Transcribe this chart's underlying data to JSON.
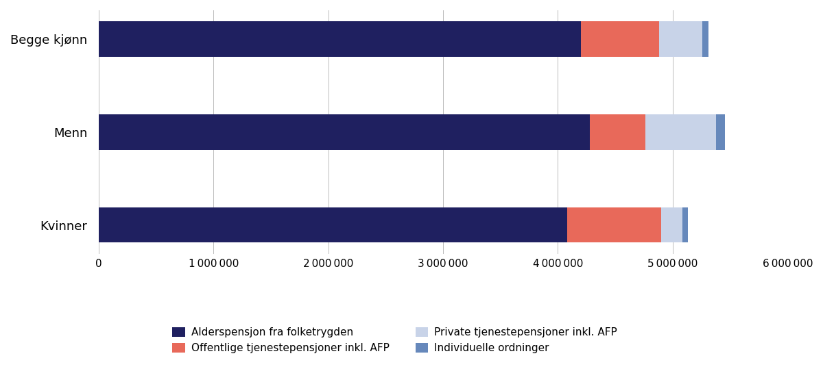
{
  "categories": [
    "Begge kjønn",
    "Menn",
    "Kvinner"
  ],
  "series": {
    "Alderspensjon fra folketrygden": [
      4200000,
      4280000,
      4080000
    ],
    "Offentlige tjenestepensjoner inkl. AFP": [
      680000,
      480000,
      820000
    ],
    "Private tjenestepensjoner inkl. AFP": [
      380000,
      620000,
      185000
    ],
    "Individuelle ordninger": [
      50000,
      75000,
      45000
    ]
  },
  "colors": {
    "Alderspensjon fra folketrygden": "#1f2060",
    "Offentlige tjenestepensjoner inkl. AFP": "#e8695a",
    "Private tjenestepensjoner inkl. AFP": "#c8d3e8",
    "Individuelle ordninger": "#6688bb"
  },
  "xlim": [
    0,
    6000000
  ],
  "xticks": [
    0,
    1000000,
    2000000,
    3000000,
    4000000,
    5000000,
    6000000
  ],
  "xtick_labels": [
    "0",
    "1 000 000",
    "2 000 000",
    "3 000 000",
    "4 000 000",
    "5 000 000",
    "6 000 000"
  ],
  "background_color": "#ffffff",
  "bar_height": 0.38,
  "figsize": [
    12.0,
    5.58
  ],
  "dpi": 100,
  "legend_col1": [
    "Alderspensjon fra folketrygden",
    "Private tjenestepensjoner inkl. AFP"
  ],
  "legend_col2": [
    "Offentlige tjenestepensjoner inkl. AFP",
    "Individuelle ordninger"
  ]
}
